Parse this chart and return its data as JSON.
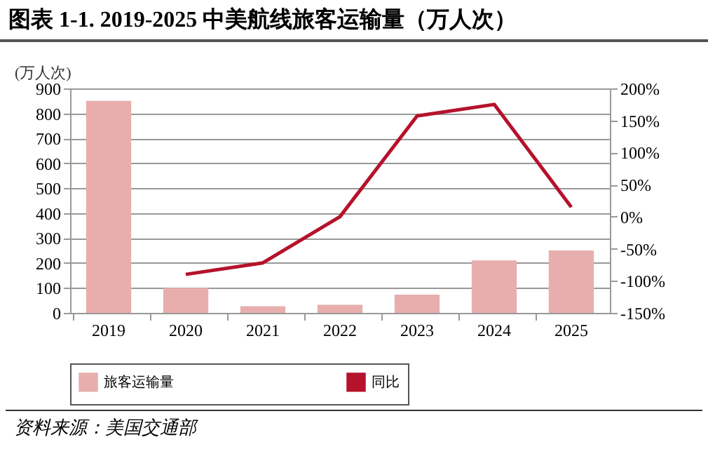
{
  "chart_data": {
    "type": "bar",
    "title": "图表 1-1. 2019-2025 中美航线旅客运输量（万人次）",
    "categories": [
      "2019",
      "2020",
      "2021",
      "2022",
      "2023",
      "2024",
      "2025"
    ],
    "series": [
      {
        "name": "旅客运输量",
        "color": "#e8aeae",
        "values": [
          850,
          100,
          27,
          32,
          73,
          210,
          250
        ]
      },
      {
        "name": "同比",
        "type": "line",
        "axis": "y2",
        "color": "#b5122b",
        "values": [
          null,
          -90,
          -72,
          0,
          157,
          175,
          15
        ]
      }
    ],
    "ylabel": "(万人次)",
    "ylim": [
      0,
      900
    ],
    "yticks": [
      0,
      100,
      200,
      300,
      400,
      500,
      600,
      700,
      800,
      900
    ],
    "y2lim": [
      -150,
      200
    ],
    "y2ticks": [
      {
        "value": -150,
        "label": "-150%"
      },
      {
        "value": -100,
        "label": "-100%"
      },
      {
        "value": -50,
        "label": "-50%"
      },
      {
        "value": 0,
        "label": "0%"
      },
      {
        "value": 50,
        "label": "50%"
      },
      {
        "value": 100,
        "label": "100%"
      },
      {
        "value": 150,
        "label": "150%"
      },
      {
        "value": 200,
        "label": "200%"
      }
    ],
    "grid": "y",
    "legend": "bottom",
    "annotations": [
      "资料来源：美国交通部"
    ]
  }
}
